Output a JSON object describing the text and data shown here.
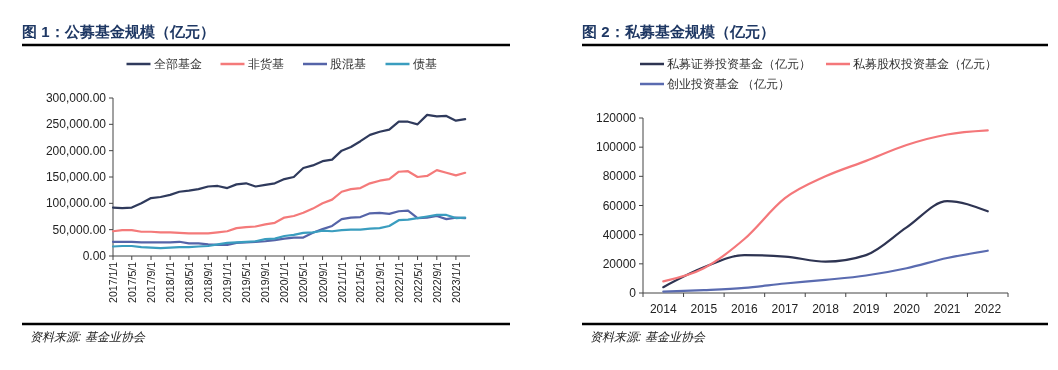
{
  "chart_data": [
    {
      "type": "line",
      "title": "图 1：公募基金规模（亿元）",
      "legend": "top",
      "annotations": [
        "资料来源: 基金业协会"
      ],
      "x": [
        "2017-01",
        "2017-03",
        "2017-05",
        "2017-07",
        "2017-09",
        "2017-11",
        "2018-01",
        "2018-03",
        "2018-05",
        "2018-07",
        "2018-09",
        "2018-11",
        "2019-01",
        "2019-03",
        "2019-05",
        "2019-07",
        "2019-09",
        "2019-11",
        "2020-01",
        "2020-03",
        "2020-05",
        "2020-07",
        "2020-09",
        "2020-11",
        "2021-01",
        "2021-03",
        "2021-05",
        "2021-07",
        "2021-09",
        "2021-11",
        "2022-01",
        "2022-03",
        "2022-05",
        "2022-07",
        "2022-09",
        "2022-11",
        "2023-01",
        "2023-03"
      ],
      "xlim": [
        "2017-01-01",
        "2023-04-01"
      ],
      "xticks": [
        {
          "value": "2017-01-01",
          "label": "2017/1/1"
        },
        {
          "value": "2017-05-01",
          "label": "2017/5/1"
        },
        {
          "value": "2017-09-01",
          "label": "2017/9/1"
        },
        {
          "value": "2018-01-01",
          "label": "2018/1/1"
        },
        {
          "value": "2018-05-01",
          "label": "2018/5/1"
        },
        {
          "value": "2018-09-01",
          "label": "2018/9/1"
        },
        {
          "value": "2019-01-01",
          "label": "2019/1/1"
        },
        {
          "value": "2019-05-01",
          "label": "2019/5/1"
        },
        {
          "value": "2019-09-01",
          "label": "2019/9/1"
        },
        {
          "value": "2020-01-01",
          "label": "2020/1/1"
        },
        {
          "value": "2020-05-01",
          "label": "2020/5/1"
        },
        {
          "value": "2020-09-01",
          "label": "2020/9/1"
        },
        {
          "value": "2021-01-01",
          "label": "2021/1/1"
        },
        {
          "value": "2021-05-01",
          "label": "2021/5/1"
        },
        {
          "value": "2021-09-01",
          "label": "2021/9/1"
        },
        {
          "value": "2022-01-01",
          "label": "2022/1/1"
        },
        {
          "value": "2022-05-01",
          "label": "2022/5/1"
        },
        {
          "value": "2022-09-01",
          "label": "2022/9/1"
        },
        {
          "value": "2023-01-01",
          "label": "2023/1/1"
        }
      ],
      "ylim": [
        0,
        300000
      ],
      "yticks": [
        {
          "value": 0,
          "label": "0.00"
        },
        {
          "value": 50000,
          "label": "50,000.00"
        },
        {
          "value": 100000,
          "label": "100,000.00"
        },
        {
          "value": 150000,
          "label": "150,000.00"
        },
        {
          "value": 200000,
          "label": "200,000.00"
        },
        {
          "value": 250000,
          "label": "250,000.00"
        },
        {
          "value": 300000,
          "label": "300,000.00"
        }
      ],
      "series": [
        {
          "name": "全部基金",
          "color": "#2f3a5c",
          "values": [
            92000,
            91000,
            92000,
            100000,
            110000,
            112000,
            116000,
            122000,
            124000,
            127000,
            132000,
            133000,
            129000,
            136000,
            138000,
            132000,
            135000,
            138000,
            146000,
            150000,
            167000,
            172000,
            180000,
            183000,
            200000,
            207000,
            218000,
            230000,
            236000,
            240000,
            255000,
            255000,
            250000,
            268000,
            265000,
            266000,
            257000,
            260000
          ]
        },
        {
          "name": "非货基",
          "color": "#f47a7a",
          "values": [
            47000,
            49000,
            49000,
            46000,
            46000,
            45000,
            45000,
            44000,
            43000,
            43000,
            43000,
            45000,
            47000,
            53000,
            55000,
            56000,
            60000,
            63000,
            73000,
            76000,
            82000,
            90000,
            100000,
            107000,
            122000,
            127000,
            129000,
            138000,
            143000,
            146000,
            160000,
            161000,
            150000,
            152000,
            163000,
            158000,
            153000,
            158000
          ]
        },
        {
          "name": "股混基",
          "color": "#5564a8",
          "values": [
            27000,
            27000,
            27000,
            26000,
            26000,
            26000,
            26000,
            27000,
            24000,
            24000,
            22000,
            21000,
            21000,
            25000,
            26000,
            27000,
            28000,
            30000,
            33000,
            35000,
            35000,
            44000,
            51000,
            57000,
            70000,
            73000,
            74000,
            81000,
            82000,
            80000,
            85000,
            86000,
            72000,
            73000,
            76000,
            70000,
            73000,
            72000
          ]
        },
        {
          "name": "债基",
          "color": "#3a9dbf",
          "values": [
            18000,
            19000,
            19000,
            17000,
            16000,
            15000,
            16000,
            17000,
            17000,
            18000,
            19000,
            22000,
            25000,
            26000,
            27000,
            28000,
            32000,
            33000,
            38000,
            40000,
            44000,
            45000,
            48000,
            47000,
            49000,
            50000,
            50000,
            52000,
            53000,
            57000,
            68000,
            69000,
            72000,
            75000,
            78000,
            78000,
            72000,
            73000
          ]
        }
      ]
    },
    {
      "type": "line",
      "title": "图 2：私募基金规模（亿元）",
      "legend": "top",
      "annotations": [
        "资料来源: 基金业协会"
      ],
      "categories": [
        "2014",
        "2015",
        "2016",
        "2017",
        "2018",
        "2019",
        "2020",
        "2021",
        "2022"
      ],
      "ylim": [
        0,
        120000
      ],
      "yticks": [
        0,
        20000,
        40000,
        60000,
        80000,
        100000,
        120000
      ],
      "series": [
        {
          "name": "私募证券投资基金（亿元）",
          "color": "#2e3452",
          "values": [
            4000,
            17600,
            26000,
            25000,
            21500,
            26000,
            45000,
            63000,
            56000
          ]
        },
        {
          "name": "私募股权投资基金（亿元）",
          "color": "#f4777a",
          "values": [
            8000,
            17000,
            37000,
            65000,
            80000,
            90600,
            101500,
            108700,
            111500
          ]
        },
        {
          "name": "创业投资基金 （亿元）",
          "color": "#5a6bb0",
          "values": [
            1000,
            2000,
            3500,
            6500,
            9000,
            12000,
            17000,
            24000,
            29000
          ]
        }
      ]
    }
  ]
}
